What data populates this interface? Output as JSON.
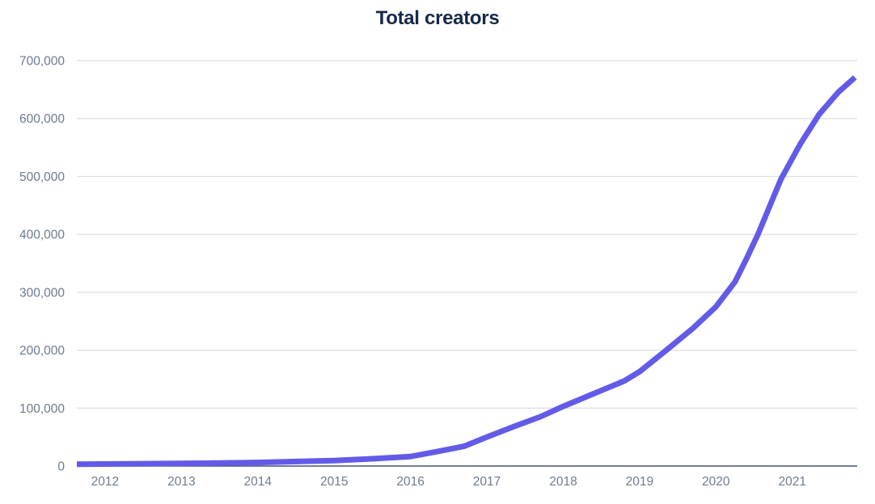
{
  "chart_data": {
    "type": "line",
    "title": "Total creators",
    "xlabel": "",
    "ylabel": "",
    "xlim": [
      2011.63,
      2021.85
    ],
    "ylim": [
      0,
      700000
    ],
    "x_ticks": [
      2012,
      2013,
      2014,
      2015,
      2016,
      2017,
      2018,
      2019,
      2020,
      2021
    ],
    "y_ticks": [
      0,
      100000,
      200000,
      300000,
      400000,
      500000,
      600000,
      700000
    ],
    "y_tick_labels": [
      "0",
      "100,000",
      "200,000",
      "300,000",
      "400,000",
      "500,000",
      "600,000",
      "700,000"
    ],
    "grid": "horizontal",
    "legend": "none",
    "series": [
      {
        "name": "Total creators",
        "color": "#635BE7",
        "points": [
          [
            2011.63,
            3000
          ],
          [
            2012.0,
            3500
          ],
          [
            2012.5,
            4000
          ],
          [
            2013.0,
            4500
          ],
          [
            2013.5,
            5200
          ],
          [
            2014.0,
            6200
          ],
          [
            2014.5,
            7800
          ],
          [
            2015.0,
            9500
          ],
          [
            2015.5,
            12500
          ],
          [
            2016.0,
            16500
          ],
          [
            2016.35,
            25000
          ],
          [
            2016.7,
            34000
          ],
          [
            2017.0,
            50000
          ],
          [
            2017.35,
            68000
          ],
          [
            2017.7,
            85000
          ],
          [
            2018.0,
            103000
          ],
          [
            2018.4,
            125000
          ],
          [
            2018.8,
            147000
          ],
          [
            2019.0,
            163000
          ],
          [
            2019.35,
            200000
          ],
          [
            2019.7,
            238000
          ],
          [
            2020.0,
            275000
          ],
          [
            2020.25,
            318000
          ],
          [
            2020.4,
            358000
          ],
          [
            2020.55,
            400000
          ],
          [
            2020.85,
            495000
          ],
          [
            2021.1,
            555000
          ],
          [
            2021.35,
            607000
          ],
          [
            2021.6,
            645000
          ],
          [
            2021.82,
            671000
          ]
        ]
      }
    ],
    "colors": {
      "line": "#635BE7",
      "grid": "#DCDDE3",
      "axis": "#44536B",
      "tick_text": "#6E7B8E",
      "title_text": "#16294B",
      "background": "#FFFFFF"
    }
  }
}
